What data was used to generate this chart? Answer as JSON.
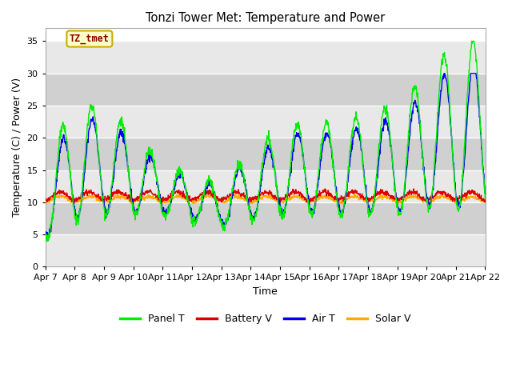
{
  "title": "Tonzi Tower Met: Temperature and Power",
  "xlabel": "Time",
  "ylabel": "Temperature (C) / Power (V)",
  "annotation": "TZ_tmet",
  "ylim": [
    0,
    37
  ],
  "yticks": [
    0,
    5,
    10,
    15,
    20,
    25,
    30,
    35
  ],
  "x_labels": [
    "Apr 7",
    "Apr 8",
    "Apr 9",
    "Apr 10",
    "Apr 11",
    "Apr 12",
    "Apr 13",
    "Apr 14",
    "Apr 15",
    "Apr 16",
    "Apr 17",
    "Apr 18",
    "Apr 19",
    "Apr 20",
    "Apr 21",
    "Apr 22"
  ],
  "fig_facecolor": "#ffffff",
  "axes_facecolor": "#ffffff",
  "panel_T_color": "#00ee00",
  "battery_V_color": "#dd0000",
  "air_T_color": "#0000ee",
  "solar_V_color": "#ffaa00",
  "line_width": 1.0,
  "legend_labels": [
    "Panel T",
    "Battery V",
    "Air T",
    "Solar V"
  ],
  "band_colors": [
    "#e8e8e8",
    "#d0d0d0"
  ],
  "grid_color": "#c8c8c8"
}
